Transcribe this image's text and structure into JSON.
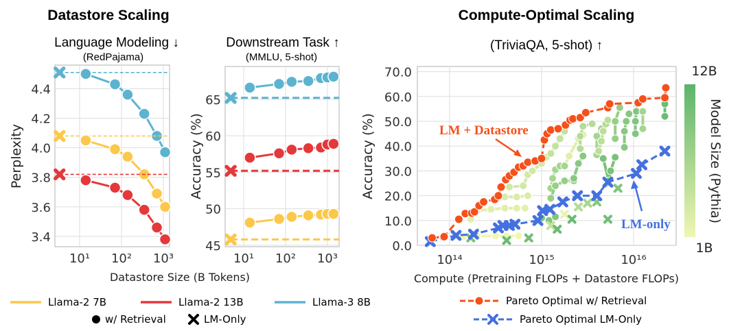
{
  "titles": {
    "datastore_scaling": "Datastore Scaling",
    "language_modeling": "Language Modeling ↓",
    "redpajama": "(RedPajama)",
    "downstream_task": "Downstream Task ↑",
    "mmlu": "(MMLU, 5-shot)",
    "compute_optimal": "Compute-Optimal Scaling",
    "triviaqa": "(TriviaQA, 5-shot) ↑"
  },
  "colors": {
    "llama2_7b": "#fcc84a",
    "llama2_13b": "#e5383b",
    "llama3_8b": "#5cb3d0",
    "pareto_retrieval": "#f5501a",
    "pareto_lm": "#4470e0",
    "size_min": "#f0f6b2",
    "size_max": "#5cb46c"
  },
  "legend_left": {
    "items": [
      "Llama-2 7B",
      "Llama-2 13B",
      "Llama-3 8B"
    ],
    "retrieval": "w/ Retrieval",
    "lm_only": "LM-Only"
  },
  "legend_right": {
    "retrieval": "Pareto Optimal w/ Retrieval",
    "lm_only": "Pareto Optimal LM-Only"
  },
  "chart_data": [
    {
      "type": "line",
      "xlabel": "Datastore Size (B Tokens)",
      "ylabel": "Perplexity",
      "xscale": "log",
      "xticks": [
        "10¹",
        "10²",
        "10³"
      ],
      "yticks": [
        "3.4",
        "3.6",
        "3.8",
        "4.0",
        "4.2",
        "4.4"
      ],
      "ylim": [
        3.33,
        4.56
      ],
      "grid": true,
      "x": [
        14,
        70,
        140,
        350,
        700,
        1100
      ],
      "series": [
        {
          "name": "Llama-3 8B",
          "values": [
            4.5,
            4.43,
            4.36,
            4.23,
            4.08,
            3.97
          ],
          "lm_only": 4.51
        },
        {
          "name": "Llama-2 7B",
          "values": [
            4.05,
            3.99,
            3.94,
            3.82,
            3.69,
            3.6
          ],
          "lm_only": 4.08
        },
        {
          "name": "Llama-2 13B",
          "values": [
            3.78,
            3.73,
            3.68,
            3.58,
            3.46,
            3.38
          ],
          "lm_only": 3.82
        }
      ]
    },
    {
      "type": "line",
      "xlabel": "Datastore Size (B Tokens)",
      "ylabel": "Accuracy (%)",
      "xscale": "log",
      "xticks": [
        "10¹",
        "10²",
        "10³"
      ],
      "yticks": [
        "45",
        "50",
        "55",
        "60",
        "65"
      ],
      "ylim": [
        44.8,
        69.5
      ],
      "grid": true,
      "x": [
        14,
        70,
        140,
        350,
        700,
        1000,
        1400
      ],
      "series": [
        {
          "name": "Llama-3 8B",
          "values": [
            66.6,
            67.1,
            67.4,
            67.5,
            67.9,
            68.0,
            68.1
          ],
          "lm_only": 65.2
        },
        {
          "name": "Llama-2 13B",
          "values": [
            57.0,
            57.6,
            58.1,
            58.3,
            58.4,
            58.8,
            58.9
          ],
          "lm_only": 55.2
        },
        {
          "name": "Llama-2 7B",
          "values": [
            48.1,
            48.6,
            48.9,
            49.1,
            49.2,
            49.3,
            49.3
          ],
          "lm_only": 45.8
        }
      ]
    },
    {
      "type": "scatter",
      "xlabel": "Compute (Pretraining FLOPs + Datastore FLOPs)",
      "ylabel": "Accuracy (%)",
      "xscale": "log",
      "xticks": [
        "10¹⁴",
        "10¹⁵",
        "10¹⁶"
      ],
      "yticks": [
        "0.0",
        "10.0",
        "20.0",
        "30.0",
        "40.0",
        "50.0",
        "60.0",
        "70.0"
      ],
      "ylim": [
        0,
        72
      ],
      "grid": true,
      "colorbar": {
        "label": "Model Size (Pythia)",
        "min_label": "1B",
        "max_label": "12B"
      },
      "annotations": [
        "LM + Datastore",
        "LM-only"
      ],
      "pareto_retrieval": {
        "name": "Pareto Optimal w/ Retrieval",
        "log10_x": [
          13.81,
          13.94,
          14.1,
          14.17,
          14.24,
          14.27,
          14.32,
          14.37,
          14.49,
          14.53,
          14.56,
          14.61,
          14.65,
          14.7,
          14.75,
          14.8,
          14.85,
          14.93,
          15.0,
          15.03,
          15.06,
          15.1,
          15.18,
          15.26,
          15.31,
          15.34,
          15.42,
          15.48,
          15.72,
          15.74,
          16.05,
          16.1,
          16.34,
          16.35
        ],
        "y": [
          3,
          3.5,
          10.5,
          12.8,
          13,
          13.5,
          16,
          17.5,
          18.5,
          20,
          23.5,
          26.5,
          28,
          29.5,
          31.5,
          32,
          33.5,
          34,
          35,
          42.5,
          45,
          46.5,
          47,
          48.5,
          50.5,
          51,
          51.5,
          53.5,
          55.5,
          57,
          57.5,
          59,
          59.5,
          63.5
        ]
      },
      "pareto_lm": {
        "name": "Pareto Optimal LM-Only",
        "log10_x": [
          13.79,
          14.07,
          14.26,
          14.53,
          14.58,
          14.65,
          14.71,
          14.96,
          15.01,
          15.09,
          15.23,
          15.39,
          15.6,
          15.72,
          16.03,
          16.09,
          16.34
        ],
        "y": [
          1.5,
          4,
          4.5,
          7,
          8,
          8,
          8.5,
          10,
          14,
          14.5,
          17.5,
          20,
          20,
          25.5,
          29,
          32.5,
          38
        ]
      },
      "retrieval_groups": [
        {
          "size": 0.0,
          "points": [
            [
              14.15,
              3.5
            ],
            [
              14.3,
              3.8
            ],
            [
              14.5,
              3.8
            ],
            [
              14.62,
              3.8
            ],
            [
              14.75,
              3.8
            ]
          ]
        },
        {
          "size": 0.1,
          "points": [
            [
              14.23,
              10.5
            ],
            [
              14.3,
              14
            ],
            [
              14.45,
              14.5
            ],
            [
              14.6,
              15
            ],
            [
              14.73,
              15
            ],
            [
              14.82,
              15
            ]
          ]
        },
        {
          "size": 0.15,
          "points": [
            [
              14.6,
              19.5
            ],
            [
              14.73,
              19.5
            ],
            [
              14.85,
              20
            ]
          ]
        },
        {
          "size": 0.2,
          "points": [
            [
              14.65,
              23.5
            ],
            [
              14.8,
              24
            ],
            [
              14.85,
              28.5
            ],
            [
              14.9,
              30
            ],
            [
              15.0,
              33
            ],
            [
              15.05,
              35.5
            ]
          ]
        },
        {
          "size": 0.3,
          "points": [
            [
              15.1,
              37
            ],
            [
              15.15,
              40
            ],
            [
              15.2,
              43
            ],
            [
              15.25,
              46
            ]
          ]
        },
        {
          "size": 0.1,
          "points": [
            [
              15.25,
              32
            ],
            [
              15.3,
              36
            ],
            [
              15.4,
              43
            ],
            [
              15.45,
              44.5
            ]
          ]
        },
        {
          "size": 0.5,
          "points": [
            [
              15.1,
              23
            ],
            [
              15.12,
              27
            ],
            [
              15.15,
              30.5
            ],
            [
              15.2,
              32
            ],
            [
              15.25,
              32
            ]
          ]
        },
        {
          "size": 0.6,
          "points": [
            [
              15.1,
              19
            ],
            [
              15.15,
              24
            ],
            [
              15.25,
              26
            ],
            [
              15.35,
              26
            ]
          ]
        },
        {
          "size": 0.75,
          "points": [
            [
              15.0,
              11
            ],
            [
              15.08,
              10
            ],
            [
              15.15,
              11.5
            ]
          ]
        },
        {
          "size": 0.7,
          "points": [
            [
              15.35,
              27
            ],
            [
              15.4,
              33
            ],
            [
              15.45,
              36
            ]
          ]
        },
        {
          "size": 0.4,
          "points": [
            [
              15.42,
              39
            ],
            [
              15.42,
              44
            ],
            [
              15.45,
              48
            ],
            [
              15.55,
              49
            ]
          ]
        },
        {
          "size": 0.5,
          "points": [
            [
              15.6,
              36.5
            ],
            [
              15.6,
              44
            ],
            [
              15.65,
              47
            ],
            [
              15.7,
              49
            ]
          ]
        },
        {
          "size": 0.35,
          "points": [
            [
              15.62,
              38
            ],
            [
              15.65,
              42
            ],
            [
              15.67,
              46
            ],
            [
              15.72,
              50.5
            ]
          ]
        },
        {
          "size": 0.8,
          "points": [
            [
              15.67,
              35
            ],
            [
              15.73,
              26
            ],
            [
              15.75,
              30
            ],
            [
              15.8,
              35.5
            ]
          ]
        },
        {
          "size": 0.6,
          "points": [
            [
              15.8,
              43
            ],
            [
              15.8,
              50
            ],
            [
              15.85,
              55.5
            ]
          ]
        },
        {
          "size": 0.7,
          "points": [
            [
              15.9,
              39.5
            ],
            [
              15.9,
              46
            ],
            [
              15.92,
              50
            ],
            [
              15.95,
              53
            ]
          ]
        },
        {
          "size": 0.75,
          "points": [
            [
              16.02,
              45
            ],
            [
              16.02,
              50
            ],
            [
              16.03,
              54
            ],
            [
              16.04,
              57
            ]
          ]
        },
        {
          "size": 0.5,
          "points": [
            [
              16.1,
              47
            ],
            [
              16.1,
              54
            ]
          ]
        },
        {
          "size": 0.9,
          "points": [
            [
              16.34,
              52
            ],
            [
              16.34,
              57
            ]
          ]
        }
      ],
      "lm_only_points": [
        [
          14.23,
          3,
          0.8
        ],
        [
          14.62,
          2,
          0.9
        ],
        [
          14.86,
          3,
          0.85
        ],
        [
          15.1,
          8,
          0.3
        ],
        [
          15.17,
          6.5,
          0.9
        ],
        [
          15.25,
          12.5,
          0.05
        ],
        [
          15.33,
          10.5,
          0.9
        ],
        [
          15.4,
          15.5,
          0.4
        ],
        [
          15.5,
          17,
          0.5
        ],
        [
          15.6,
          17.5,
          0.7
        ],
        [
          15.72,
          10.5,
          0.85
        ],
        [
          15.73,
          25,
          0.4
        ],
        [
          15.83,
          23,
          0.75
        ]
      ]
    }
  ]
}
